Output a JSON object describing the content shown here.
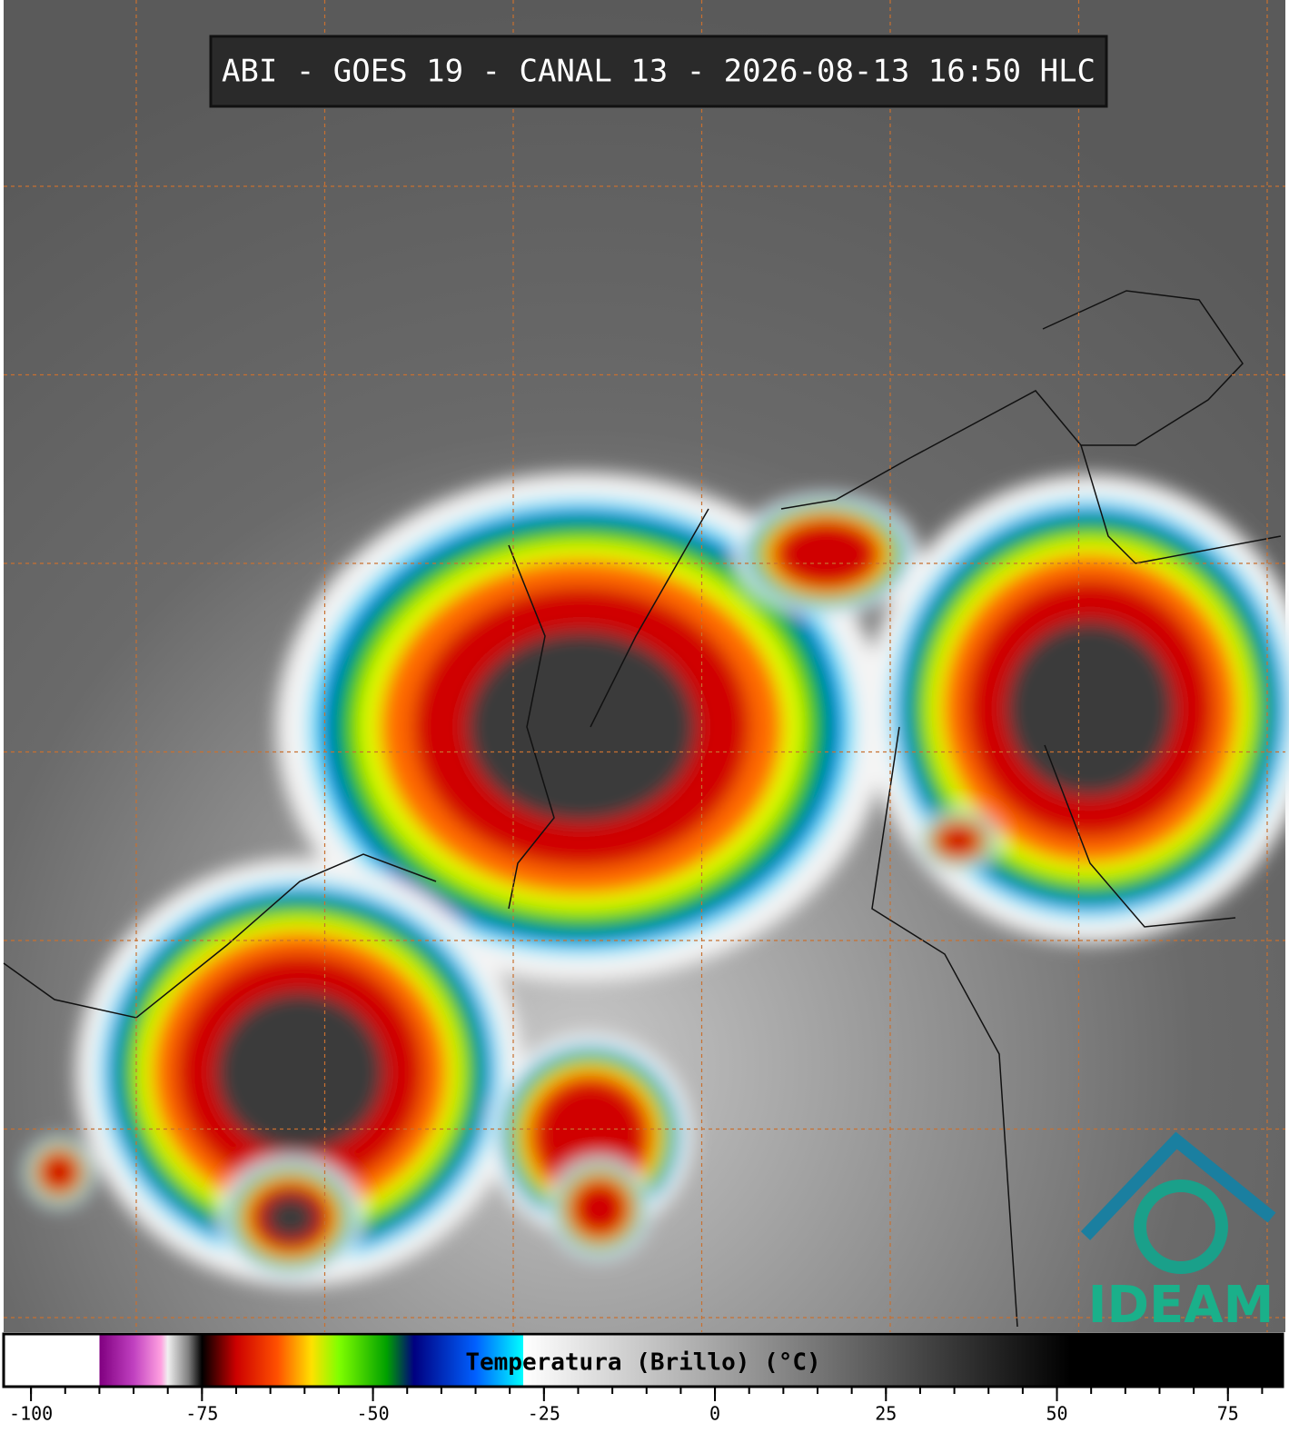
{
  "header": {
    "title": "ABI - GOES 19 - CANAL 13 - 2026-08-13 16:50 HLC"
  },
  "colorbar": {
    "label": "Temperatura (Brillo) (°C)",
    "xlim": [
      -104,
      83
    ],
    "ticks": [
      -100,
      -75,
      -50,
      -25,
      0,
      25,
      50,
      75
    ],
    "minor_step": 5,
    "stops": [
      {
        "value": -104,
        "color": "#ffffff"
      },
      {
        "value": -90,
        "color": "#ffffff"
      },
      {
        "value": -90,
        "color": "#800080"
      },
      {
        "value": -85,
        "color": "#c040c0"
      },
      {
        "value": -81,
        "color": "#ffa0e0"
      },
      {
        "value": -80,
        "color": "#f0f0f0"
      },
      {
        "value": -77,
        "color": "#808080"
      },
      {
        "value": -75,
        "color": "#000000"
      },
      {
        "value": -70,
        "color": "#cc0000"
      },
      {
        "value": -64,
        "color": "#ff5000"
      },
      {
        "value": -59,
        "color": "#ffe000"
      },
      {
        "value": -55,
        "color": "#80ff00"
      },
      {
        "value": -48,
        "color": "#00a000"
      },
      {
        "value": -44,
        "color": "#000080"
      },
      {
        "value": -35,
        "color": "#0060ff"
      },
      {
        "value": -28,
        "color": "#00ffff"
      },
      {
        "value": -28,
        "color": "#ffffff"
      },
      {
        "value": 52,
        "color": "#000000"
      },
      {
        "value": 83,
        "color": "#000000"
      }
    ]
  },
  "logo": {
    "text": "IDEAM"
  }
}
